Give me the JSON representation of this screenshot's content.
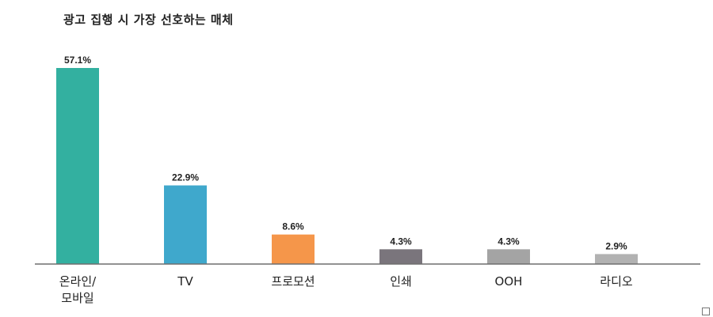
{
  "chart_data": {
    "type": "bar",
    "title": "광고 집행 시 가장 선호하는 매체",
    "categories": [
      [
        "온라인/",
        "모바일"
      ],
      [
        "TV"
      ],
      [
        "프로모션"
      ],
      [
        "인쇄"
      ],
      [
        "OOH"
      ],
      [
        "라디오"
      ]
    ],
    "values": [
      57.1,
      22.9,
      8.6,
      4.3,
      4.3,
      2.9
    ],
    "value_labels": [
      "57.1%",
      "22.9%",
      "8.6%",
      "4.3%",
      "4.3%",
      "2.9%"
    ],
    "colors": [
      "#33b0a0",
      "#3fa8cc",
      "#f5964a",
      "#7a757c",
      "#a4a4a4",
      "#b2b2b2"
    ],
    "ylim": [
      0,
      60
    ],
    "grid": false,
    "legend": "none"
  }
}
